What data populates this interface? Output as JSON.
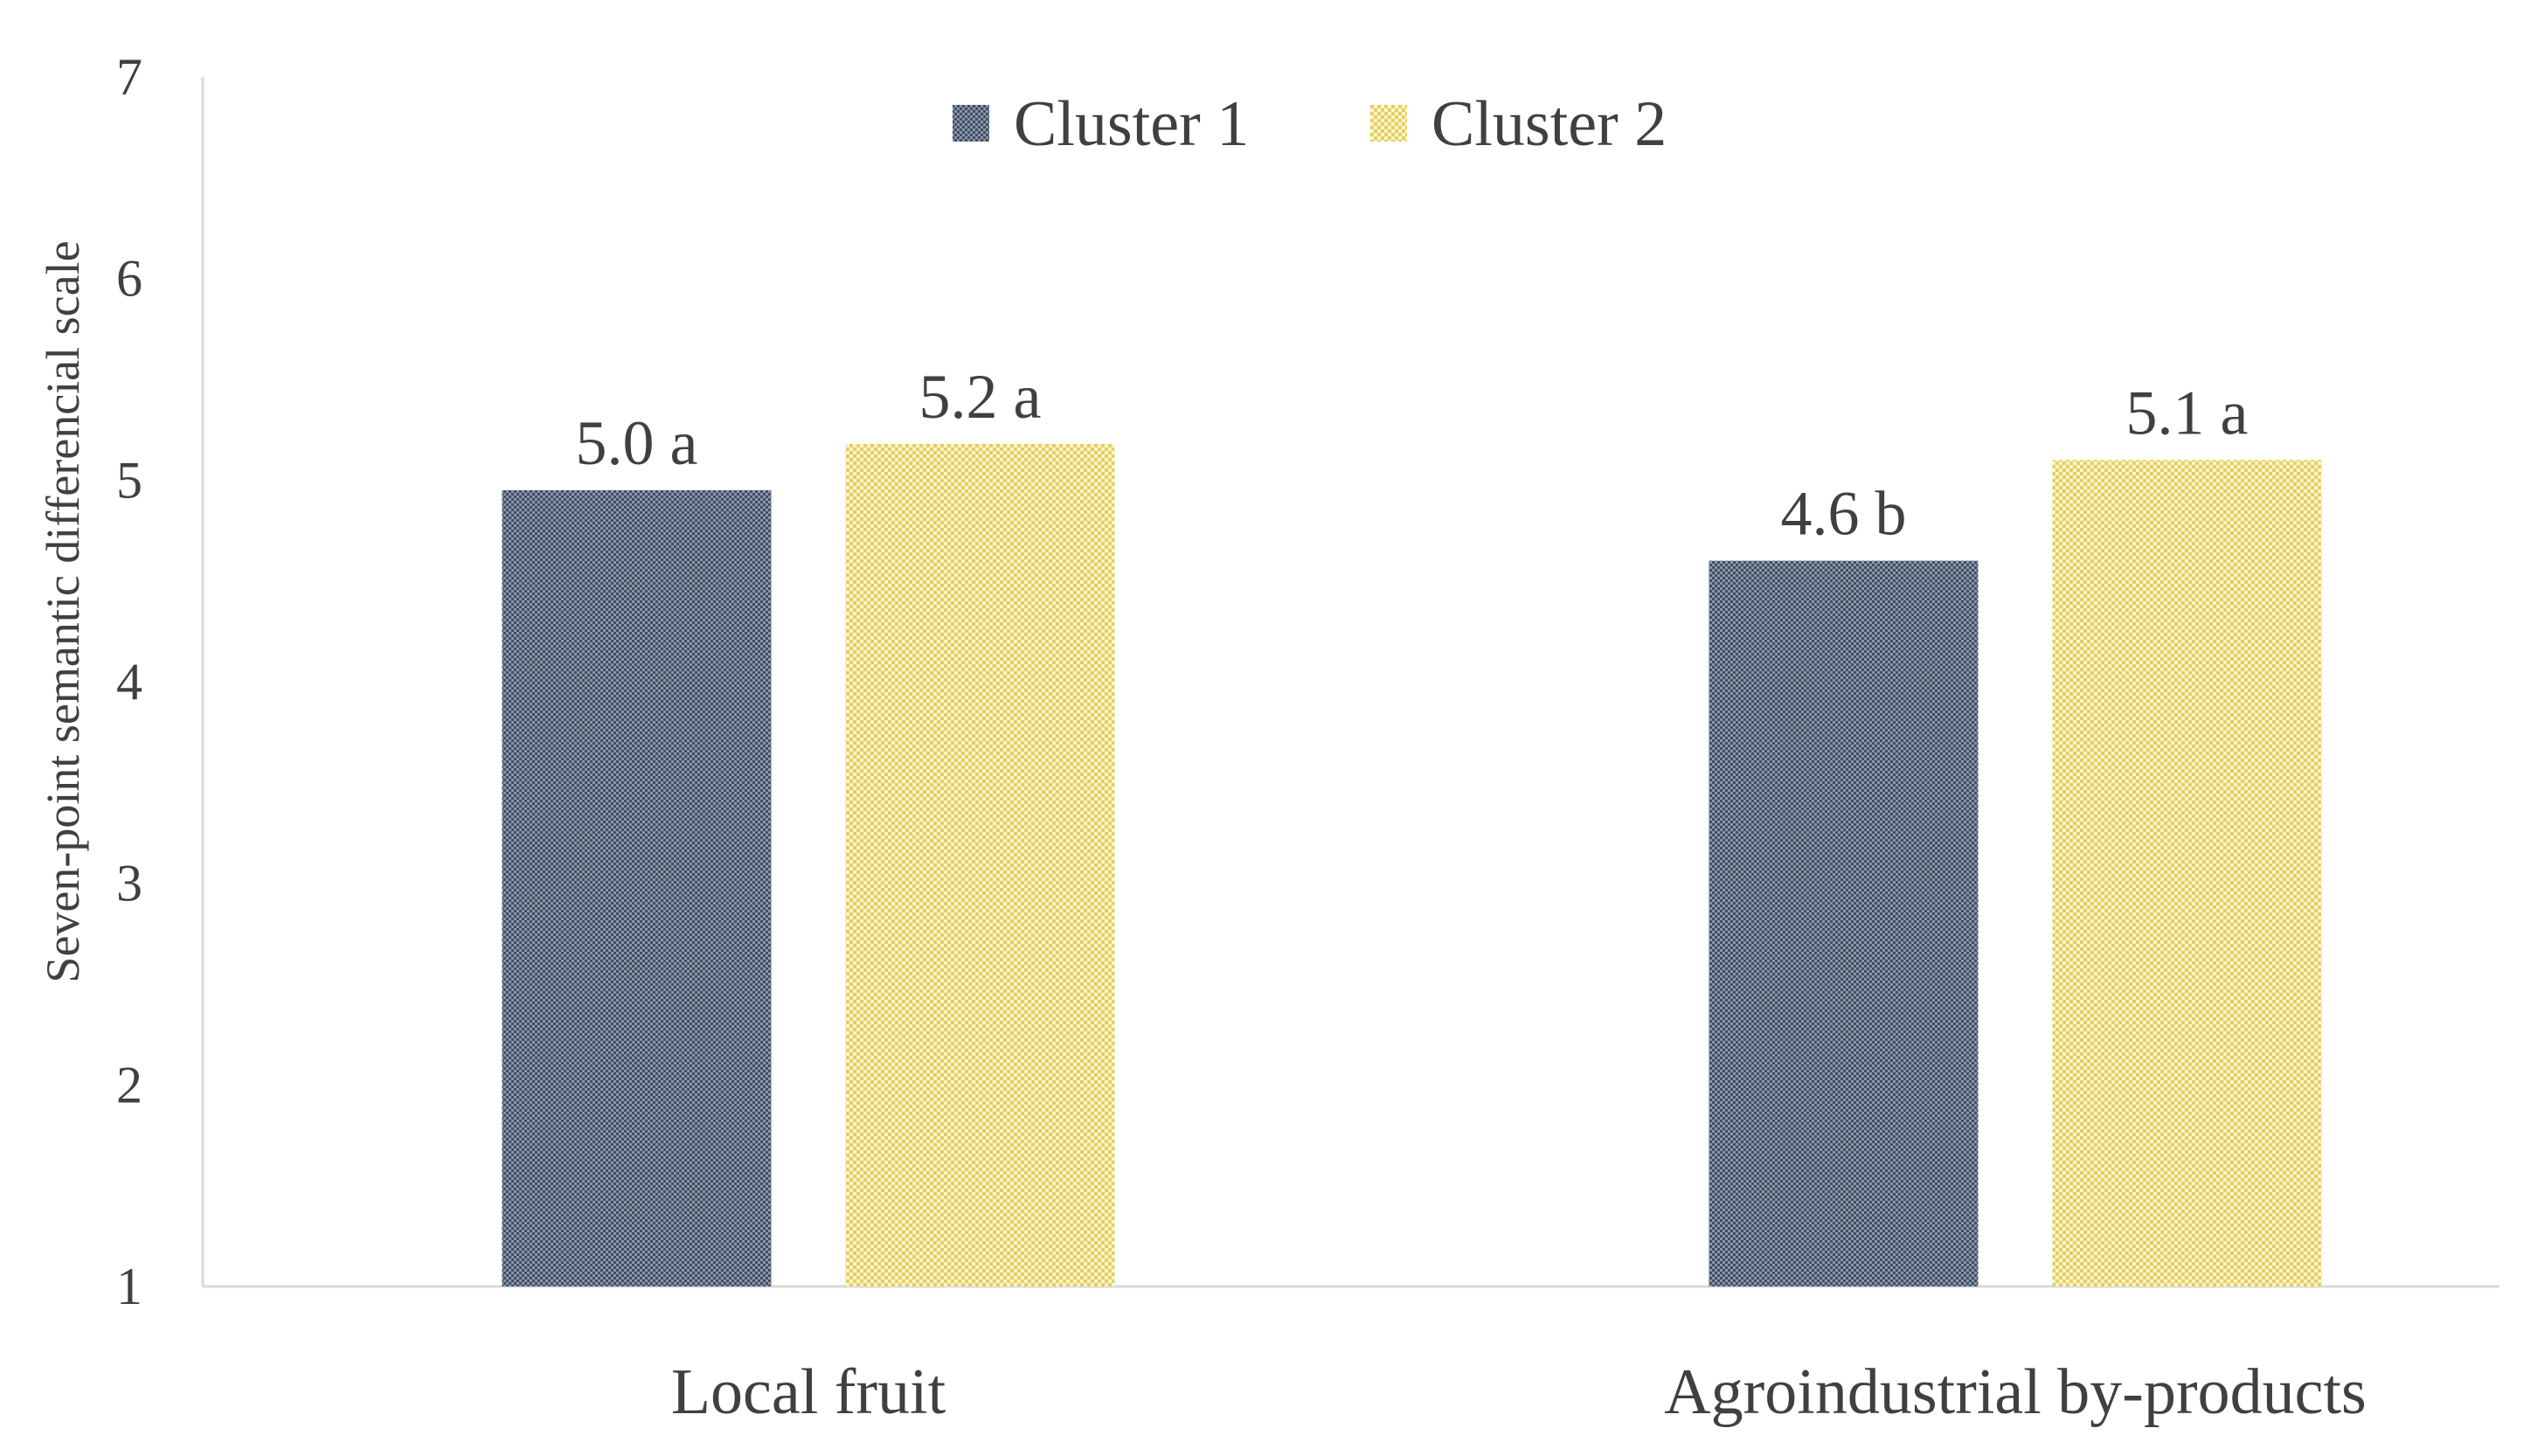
{
  "chart_data": {
    "type": "bar",
    "title": "",
    "xlabel": "",
    "ylabel": "Seven-point  semantic  differencial  scale",
    "ylim": [
      1,
      7
    ],
    "yticks": [
      1,
      2,
      3,
      4,
      5,
      6,
      7
    ],
    "grid": false,
    "legend_position": "top-center",
    "categories": [
      "Local fruit",
      "Agroindustrial by-products"
    ],
    "series": [
      {
        "name": "Cluster 1",
        "values": [
          4.95,
          4.6
        ],
        "labels": [
          "5.0 a",
          "4.6 b"
        ],
        "color": "#44546a",
        "pattern": "dense-dots"
      },
      {
        "name": "Cluster 2",
        "values": [
          5.18,
          5.1
        ],
        "labels": [
          "5.2 a",
          "5.1 a"
        ],
        "color": "#e8d36a",
        "pattern": "checker"
      }
    ]
  }
}
